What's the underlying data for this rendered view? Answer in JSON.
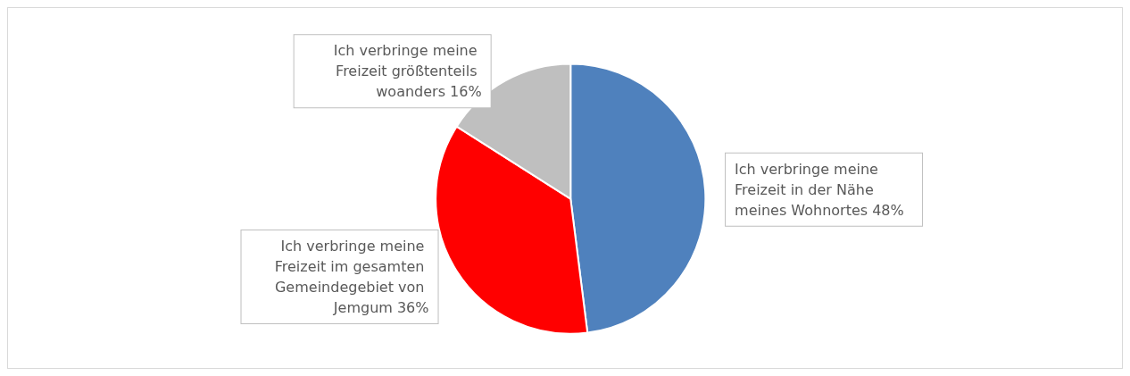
{
  "chart_data": {
    "type": "pie",
    "categories": [
      "Ich verbringe meine Freizeit in der Nähe meines Wohnortes",
      "Ich verbringe meine Freizeit im gesamten Gemeindegebiet von Jemgum",
      "Ich verbringe meine Freizeit größtenteils woanders"
    ],
    "values": [
      48,
      36,
      16
    ],
    "colors": [
      "#4f81bd",
      "#ff0000",
      "#bfbfbf"
    ],
    "value_labels": [
      "48%",
      "36%",
      "16%"
    ],
    "legend": false
  }
}
